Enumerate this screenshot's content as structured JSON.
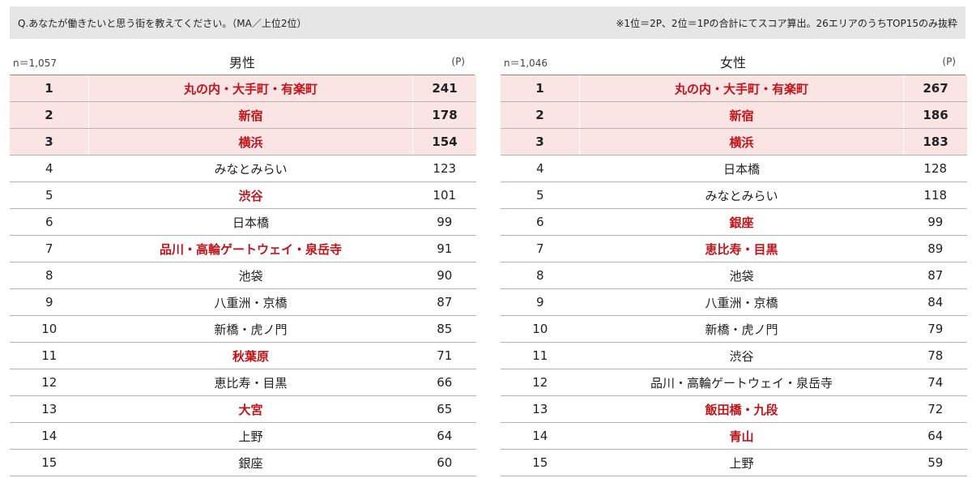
{
  "header": {
    "question": "Q.あなたが働きたいと思う街を教えてください。（MA／上位2位）",
    "note": "※1位＝2P、2位＝1Pの合計にてスコア算出。26エリアのうちTOP15のみ抜粋"
  },
  "colors": {
    "highlight_text": "#c0141b",
    "top3_background": "#fbe4e4",
    "header_background": "#e6e6e6"
  },
  "male": {
    "n": "n＝1,057",
    "title": "男性",
    "unit": "(P)",
    "rows": [
      {
        "rank": "1",
        "area": "丸の内・大手町・有楽町",
        "score": "241",
        "highlight": true
      },
      {
        "rank": "2",
        "area": "新宿",
        "score": "178",
        "highlight": true
      },
      {
        "rank": "3",
        "area": "横浜",
        "score": "154",
        "highlight": true
      },
      {
        "rank": "4",
        "area": "みなとみらい",
        "score": "123",
        "highlight": false
      },
      {
        "rank": "5",
        "area": "渋谷",
        "score": "101",
        "highlight": true
      },
      {
        "rank": "6",
        "area": "日本橋",
        "score": "99",
        "highlight": false
      },
      {
        "rank": "7",
        "area": "品川・高輪ゲートウェイ・泉岳寺",
        "score": "91",
        "highlight": true
      },
      {
        "rank": "8",
        "area": "池袋",
        "score": "90",
        "highlight": false
      },
      {
        "rank": "9",
        "area": "八重洲・京橋",
        "score": "87",
        "highlight": false
      },
      {
        "rank": "10",
        "area": "新橋・虎ノ門",
        "score": "85",
        "highlight": false
      },
      {
        "rank": "11",
        "area": "秋葉原",
        "score": "71",
        "highlight": true
      },
      {
        "rank": "12",
        "area": "恵比寿・目黒",
        "score": "66",
        "highlight": false
      },
      {
        "rank": "13",
        "area": "大宮",
        "score": "65",
        "highlight": true
      },
      {
        "rank": "14",
        "area": "上野",
        "score": "64",
        "highlight": false
      },
      {
        "rank": "15",
        "area": "銀座",
        "score": "60",
        "highlight": false
      }
    ]
  },
  "female": {
    "n": "n＝1,046",
    "title": "女性",
    "unit": "(P)",
    "rows": [
      {
        "rank": "1",
        "area": "丸の内・大手町・有楽町",
        "score": "267",
        "highlight": true
      },
      {
        "rank": "2",
        "area": "新宿",
        "score": "186",
        "highlight": true
      },
      {
        "rank": "3",
        "area": "横浜",
        "score": "183",
        "highlight": true
      },
      {
        "rank": "4",
        "area": "日本橋",
        "score": "128",
        "highlight": false
      },
      {
        "rank": "5",
        "area": "みなとみらい",
        "score": "118",
        "highlight": false
      },
      {
        "rank": "6",
        "area": "銀座",
        "score": "99",
        "highlight": true
      },
      {
        "rank": "7",
        "area": "恵比寿・目黒",
        "score": "89",
        "highlight": true
      },
      {
        "rank": "8",
        "area": "池袋",
        "score": "87",
        "highlight": false
      },
      {
        "rank": "9",
        "area": "八重洲・京橋",
        "score": "84",
        "highlight": false
      },
      {
        "rank": "10",
        "area": "新橋・虎ノ門",
        "score": "79",
        "highlight": false
      },
      {
        "rank": "11",
        "area": "渋谷",
        "score": "78",
        "highlight": false
      },
      {
        "rank": "12",
        "area": "品川・高輪ゲートウェイ・泉岳寺",
        "score": "74",
        "highlight": false
      },
      {
        "rank": "13",
        "area": "飯田橋・九段",
        "score": "72",
        "highlight": true
      },
      {
        "rank": "14",
        "area": "青山",
        "score": "64",
        "highlight": true
      },
      {
        "rank": "15",
        "area": "上野",
        "score": "59",
        "highlight": false
      }
    ]
  }
}
